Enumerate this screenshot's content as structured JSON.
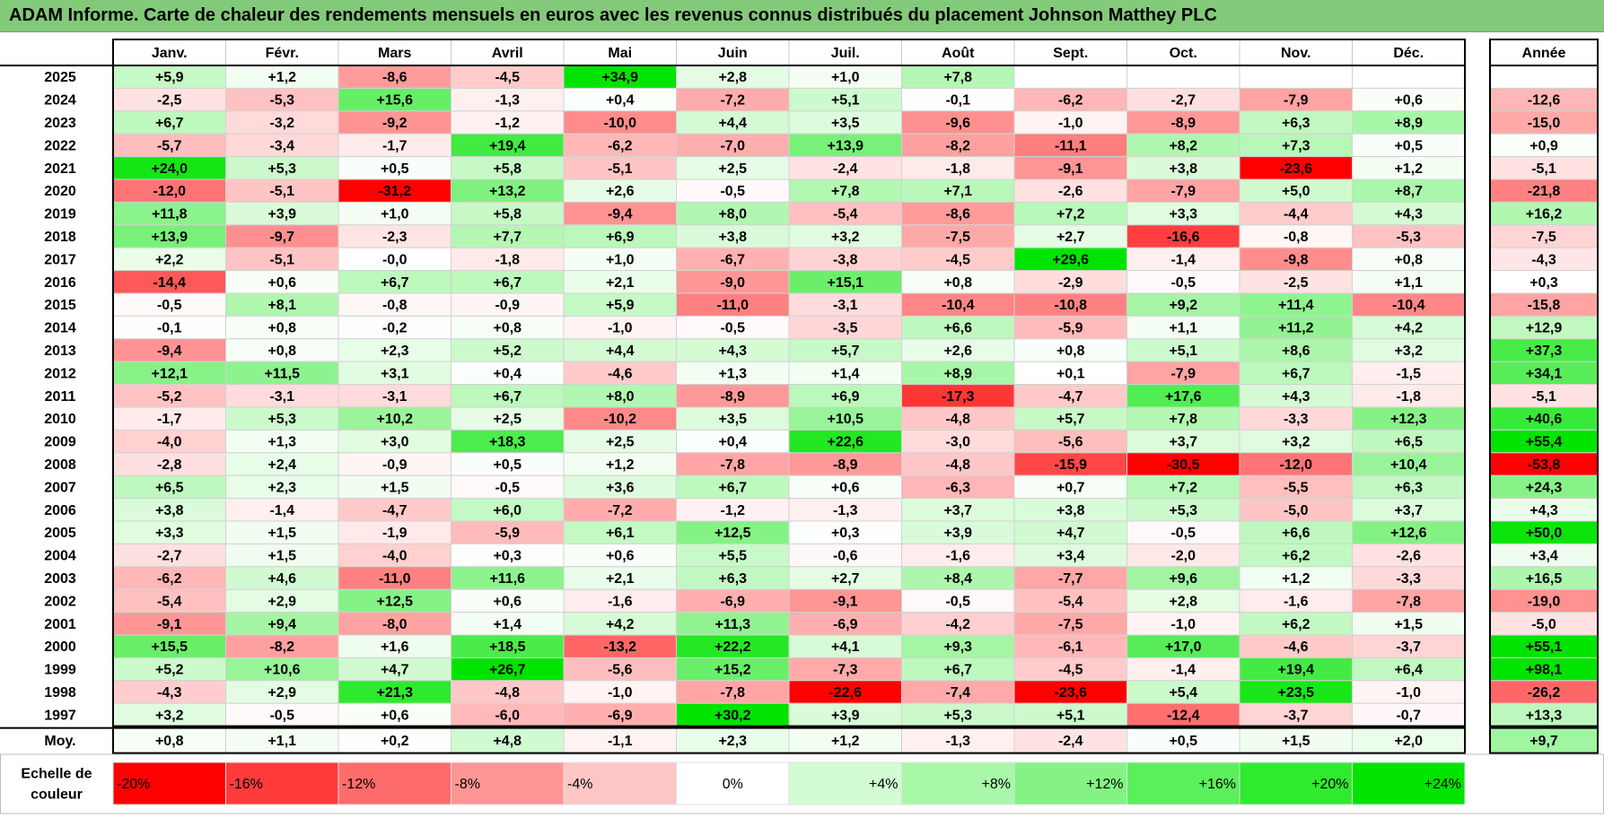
{
  "title": "ADAM Informe. Carte de chaleur des rendements mensuels en euros avec les revenus connus distribués du placement Johnson Matthey PLC",
  "chart_data": {
    "type": "heatmap",
    "months": [
      "Janv.",
      "Févr.",
      "Mars",
      "Avril",
      "Mai",
      "Juin",
      "Juil.",
      "Août",
      "Sept.",
      "Oct.",
      "Nov.",
      "Déc."
    ],
    "year_header": "Année",
    "rows": [
      {
        "year": "2025",
        "values": [
          "+5,9",
          "+1,2",
          "-8,6",
          "-4,5",
          "+34,9",
          "+2,8",
          "+1,0",
          "+7,8",
          "",
          "",
          "",
          ""
        ],
        "annual": ""
      },
      {
        "year": "2024",
        "values": [
          "-2,5",
          "-5,3",
          "+15,6",
          "-1,3",
          "+0,4",
          "-7,2",
          "+5,1",
          "-0,1",
          "-6,2",
          "-2,7",
          "-7,9",
          "+0,6"
        ],
        "annual": "-12,6"
      },
      {
        "year": "2023",
        "values": [
          "+6,7",
          "-3,2",
          "-9,2",
          "-1,2",
          "-10,0",
          "+4,4",
          "+3,5",
          "-9,6",
          "-1,0",
          "-8,9",
          "+6,3",
          "+8,9"
        ],
        "annual": "-15,0"
      },
      {
        "year": "2022",
        "values": [
          "-5,7",
          "-3,4",
          "-1,7",
          "+19,4",
          "-6,2",
          "-7,0",
          "+13,9",
          "-8,2",
          "-11,1",
          "+8,2",
          "+7,3",
          "+0,5"
        ],
        "annual": "+0,9"
      },
      {
        "year": "2021",
        "values": [
          "+24,0",
          "+5,3",
          "+0,5",
          "+5,8",
          "-5,1",
          "+2,5",
          "-2,4",
          "-1,8",
          "-9,1",
          "+3,8",
          "-23,6",
          "+1,2"
        ],
        "annual": "-5,1"
      },
      {
        "year": "2020",
        "values": [
          "-12,0",
          "-5,1",
          "-31,2",
          "+13,2",
          "+2,6",
          "-0,5",
          "+7,8",
          "+7,1",
          "-2,6",
          "-7,9",
          "+5,0",
          "+8,7"
        ],
        "annual": "-21,8"
      },
      {
        "year": "2019",
        "values": [
          "+11,8",
          "+3,9",
          "+1,0",
          "+5,8",
          "-9,4",
          "+8,0",
          "-5,4",
          "-8,6",
          "+7,2",
          "+3,3",
          "-4,4",
          "+4,3"
        ],
        "annual": "+16,2"
      },
      {
        "year": "2018",
        "values": [
          "+13,9",
          "-9,7",
          "-2,3",
          "+7,7",
          "+6,9",
          "+3,8",
          "+3,2",
          "-7,5",
          "+2,7",
          "-16,6",
          "-0,8",
          "-5,3"
        ],
        "annual": "-7,5"
      },
      {
        "year": "2017",
        "values": [
          "+2,2",
          "-5,1",
          "-0,0",
          "-1,8",
          "+1,0",
          "-6,7",
          "-3,8",
          "-4,5",
          "+29,6",
          "-1,4",
          "-9,8",
          "+0,8"
        ],
        "annual": "-4,3"
      },
      {
        "year": "2016",
        "values": [
          "-14,4",
          "+0,6",
          "+6,7",
          "+6,7",
          "+2,1",
          "-9,0",
          "+15,1",
          "+0,8",
          "-2,9",
          "-0,5",
          "-2,5",
          "+1,1"
        ],
        "annual": "+0,3"
      },
      {
        "year": "2015",
        "values": [
          "-0,5",
          "+8,1",
          "-0,8",
          "-0,9",
          "+5,9",
          "-11,0",
          "-3,1",
          "-10,4",
          "-10,8",
          "+9,2",
          "+11,4",
          "-10,4"
        ],
        "annual": "-15,8"
      },
      {
        "year": "2014",
        "values": [
          "-0,1",
          "+0,8",
          "-0,2",
          "+0,8",
          "-1,0",
          "-0,5",
          "-3,5",
          "+6,6",
          "-5,9",
          "+1,1",
          "+11,2",
          "+4,2"
        ],
        "annual": "+12,9"
      },
      {
        "year": "2013",
        "values": [
          "-9,4",
          "+0,8",
          "+2,3",
          "+5,2",
          "+4,4",
          "+4,3",
          "+5,7",
          "+2,6",
          "+0,8",
          "+5,1",
          "+8,6",
          "+3,2"
        ],
        "annual": "+37,3"
      },
      {
        "year": "2012",
        "values": [
          "+12,1",
          "+11,5",
          "+3,1",
          "+0,4",
          "-4,6",
          "+1,3",
          "+1,4",
          "+8,9",
          "+0,1",
          "-7,9",
          "+6,7",
          "-1,5"
        ],
        "annual": "+34,1"
      },
      {
        "year": "2011",
        "values": [
          "-5,2",
          "-3,1",
          "-3,1",
          "+6,7",
          "+8,0",
          "-8,9",
          "+6,9",
          "-17,3",
          "-4,7",
          "+17,6",
          "+4,3",
          "-1,8"
        ],
        "annual": "-5,1"
      },
      {
        "year": "2010",
        "values": [
          "-1,7",
          "+5,3",
          "+10,2",
          "+2,5",
          "-10,2",
          "+3,5",
          "+10,5",
          "-4,8",
          "+5,7",
          "+7,8",
          "-3,3",
          "+12,3"
        ],
        "annual": "+40,6"
      },
      {
        "year": "2009",
        "values": [
          "-4,0",
          "+1,3",
          "+3,0",
          "+18,3",
          "+2,5",
          "+0,4",
          "+22,6",
          "-3,0",
          "-5,6",
          "+3,7",
          "+3,2",
          "+6,5"
        ],
        "annual": "+55,4"
      },
      {
        "year": "2008",
        "values": [
          "-2,8",
          "+2,4",
          "-0,9",
          "+0,5",
          "+1,2",
          "-7,8",
          "-8,9",
          "-4,8",
          "-15,9",
          "-30,5",
          "-12,0",
          "+10,4"
        ],
        "annual": "-53,8"
      },
      {
        "year": "2007",
        "values": [
          "+6,5",
          "+2,3",
          "+1,5",
          "-0,5",
          "+3,6",
          "+6,7",
          "+0,6",
          "-6,3",
          "+0,7",
          "+7,2",
          "-5,5",
          "+6,3"
        ],
        "annual": "+24,3"
      },
      {
        "year": "2006",
        "values": [
          "+3,8",
          "-1,4",
          "-4,7",
          "+6,0",
          "-7,2",
          "-1,2",
          "-1,3",
          "+3,7",
          "+3,8",
          "+5,3",
          "-5,0",
          "+3,7"
        ],
        "annual": "+4,3"
      },
      {
        "year": "2005",
        "values": [
          "+3,3",
          "+1,5",
          "-1,9",
          "-5,9",
          "+6,1",
          "+12,5",
          "+0,3",
          "+3,9",
          "+4,7",
          "-0,5",
          "+6,6",
          "+12,6"
        ],
        "annual": "+50,0"
      },
      {
        "year": "2004",
        "values": [
          "-2,7",
          "+1,5",
          "-4,0",
          "+0,3",
          "+0,6",
          "+5,5",
          "-0,6",
          "-1,6",
          "+3,4",
          "-2,0",
          "+6,2",
          "-2,6"
        ],
        "annual": "+3,4"
      },
      {
        "year": "2003",
        "values": [
          "-6,2",
          "+4,6",
          "-11,0",
          "+11,6",
          "+2,1",
          "+6,3",
          "+2,7",
          "+8,4",
          "-7,7",
          "+9,6",
          "+1,2",
          "-3,3"
        ],
        "annual": "+16,5"
      },
      {
        "year": "2002",
        "values": [
          "-5,4",
          "+2,9",
          "+12,5",
          "+0,6",
          "-1,6",
          "-6,9",
          "-9,1",
          "-0,5",
          "-5,4",
          "+2,8",
          "-1,6",
          "-7,8"
        ],
        "annual": "-19,0"
      },
      {
        "year": "2001",
        "values": [
          "-9,1",
          "+9,4",
          "-8,0",
          "+1,4",
          "+4,2",
          "+11,3",
          "-6,9",
          "-4,2",
          "-7,5",
          "-1,0",
          "+6,2",
          "+1,5"
        ],
        "annual": "-5,0"
      },
      {
        "year": "2000",
        "values": [
          "+15,5",
          "-8,2",
          "+1,6",
          "+18,5",
          "-13,2",
          "+22,2",
          "+4,1",
          "+9,3",
          "-6,1",
          "+17,0",
          "-4,6",
          "-3,7"
        ],
        "annual": "+55,1"
      },
      {
        "year": "1999",
        "values": [
          "+5,2",
          "+10,6",
          "+4,7",
          "+26,7",
          "-5,6",
          "+15,2",
          "-7,3",
          "+6,7",
          "-4,5",
          "-1,4",
          "+19,4",
          "+6,4"
        ],
        "annual": "+98,1"
      },
      {
        "year": "1998",
        "values": [
          "-4,3",
          "+2,9",
          "+21,3",
          "-4,8",
          "-1,0",
          "-7,8",
          "-22,6",
          "-7,4",
          "-23,6",
          "+5,4",
          "+23,5",
          "-1,0"
        ],
        "annual": "-26,2"
      },
      {
        "year": "1997",
        "values": [
          "+3,2",
          "-0,5",
          "+0,6",
          "-6,0",
          "-6,9",
          "+30,2",
          "+3,9",
          "+5,3",
          "+5,1",
          "-12,4",
          "-3,7",
          "-0,7"
        ],
        "annual": "+13,3"
      }
    ],
    "average": {
      "label": "Moy.",
      "values": [
        "+0,8",
        "+1,1",
        "+0,2",
        "+4,8",
        "-1,1",
        "+2,3",
        "+1,2",
        "-1,3",
        "-2,4",
        "+0,5",
        "+1,5",
        "+2,0"
      ],
      "annual": "+9,7"
    },
    "scale": {
      "label_line1": "Echelle de",
      "label_line2": "couleur",
      "steps": [
        {
          "label": "-20%",
          "value": -20,
          "color": "#ff0000"
        },
        {
          "label": "-16%",
          "value": -16,
          "color": "#ff3b3b"
        },
        {
          "label": "-12%",
          "value": -12,
          "color": "#ff6c6c"
        },
        {
          "label": "-8%",
          "value": -8,
          "color": "#ff9696"
        },
        {
          "label": "-4%",
          "value": -4,
          "color": "#ffc6c6"
        },
        {
          "label": "0%",
          "value": 0,
          "color": "#ffffff"
        },
        {
          "label": "+4%",
          "value": 4,
          "color": "#d3fcd3"
        },
        {
          "label": "+8%",
          "value": 8,
          "color": "#a9f7a9"
        },
        {
          "label": "+12%",
          "value": 12,
          "color": "#84f384"
        },
        {
          "label": "+16%",
          "value": 16,
          "color": "#5cef5c"
        },
        {
          "label": "+20%",
          "value": 20,
          "color": "#2fea2f"
        },
        {
          "label": "+24%",
          "value": 24,
          "color": "#00e400"
        }
      ]
    }
  }
}
